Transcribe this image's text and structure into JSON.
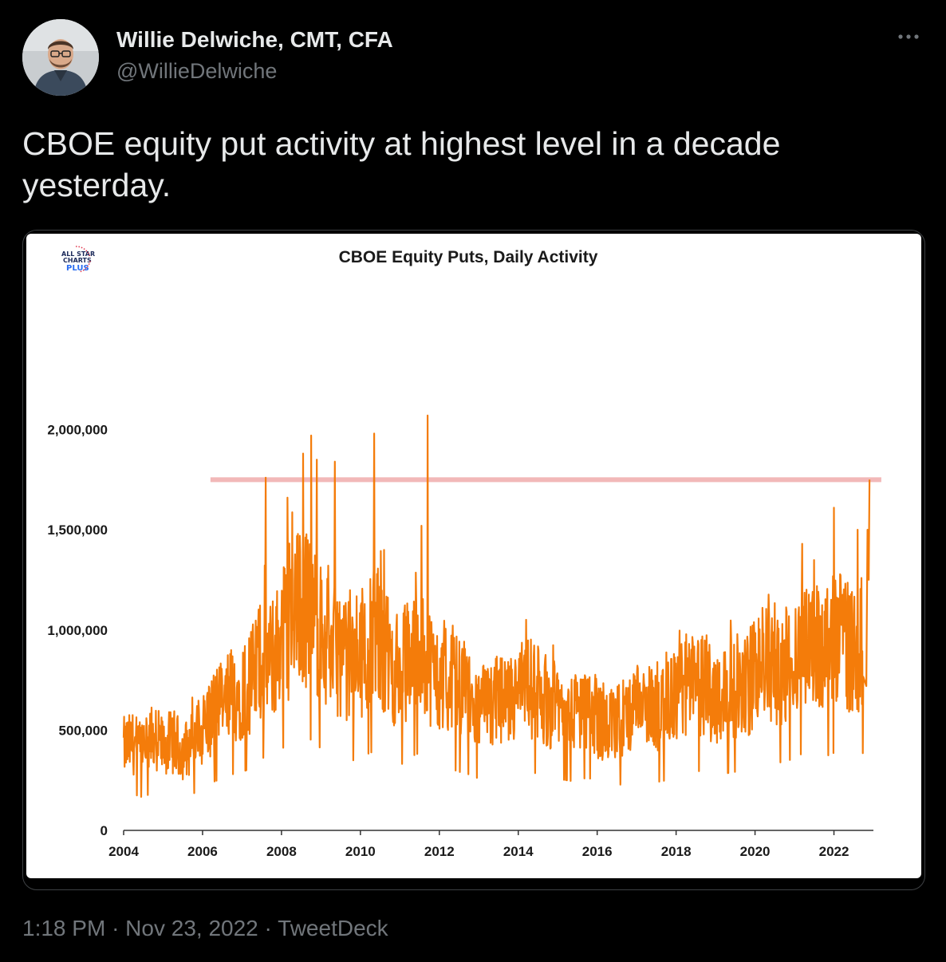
{
  "author": {
    "name": "Willie Delwiche, CMT, CFA",
    "handle": "@WillieDelwiche"
  },
  "more_icon": "more-horizontal-icon",
  "tweet": {
    "text": "CBOE equity put activity at highest level in a decade yesterday."
  },
  "meta": {
    "time": "1:18 PM",
    "separator": "·",
    "date": "Nov 23, 2022",
    "source": "TweetDeck"
  },
  "colors": {
    "series": "#f47c0a",
    "reference_line": "#f2b8b8",
    "background": "#000000",
    "chart_background": "#ffffff"
  },
  "logo": {
    "line1": "ALL STAR",
    "line2": "CHARTS",
    "line3": "PLUS"
  },
  "chart_data": {
    "type": "line",
    "title": "CBOE Equity Puts, Daily Activity",
    "xlabel": "",
    "ylabel": "",
    "xlim": [
      2004,
      2023
    ],
    "ylim": [
      0,
      2400000
    ],
    "x_ticks": [
      2004,
      2006,
      2008,
      2010,
      2012,
      2014,
      2016,
      2018,
      2020,
      2022
    ],
    "x_tick_labels": [
      "2004",
      "2006",
      "2008",
      "2010",
      "2012",
      "2014",
      "2016",
      "2018",
      "2020",
      "2022"
    ],
    "y_ticks": [
      0,
      500000,
      1000000,
      1500000,
      2000000
    ],
    "y_tick_labels": [
      "0",
      "500,000",
      "1,000,000",
      "1,500,000",
      "2,000,000"
    ],
    "grid": false,
    "legend": "none",
    "reference_line": {
      "y": 1750000,
      "x_start": 2006.2,
      "x_end": 2023.2
    },
    "series": [
      {
        "x": [
          2004.0,
          2004.25,
          2004.5,
          2004.75,
          2005.0,
          2005.25,
          2005.5,
          2005.75,
          2006.0,
          2006.25,
          2006.5,
          2006.75,
          2007.0,
          2007.25,
          2007.5,
          2007.75,
          2008.0,
          2008.25,
          2008.5,
          2008.75,
          2009.0,
          2009.25,
          2009.5,
          2009.75,
          2010.0,
          2010.25,
          2010.5,
          2010.75,
          2011.0,
          2011.25,
          2011.5,
          2011.75,
          2012.0,
          2012.25,
          2012.5,
          2012.75,
          2013.0,
          2013.25,
          2013.5,
          2013.75,
          2014.0,
          2014.25,
          2014.5,
          2014.75,
          2015.0,
          2015.25,
          2015.5,
          2015.75,
          2016.0,
          2016.25,
          2016.5,
          2016.75,
          2017.0,
          2017.25,
          2017.5,
          2017.75,
          2018.0,
          2018.25,
          2018.5,
          2018.75,
          2019.0,
          2019.25,
          2019.5,
          2019.75,
          2020.0,
          2020.25,
          2020.5,
          2020.75,
          2021.0,
          2021.25,
          2021.5,
          2021.75,
          2022.0,
          2022.25,
          2022.5,
          2022.75,
          2022.9
        ],
        "y": [
          400000,
          420000,
          380000,
          450000,
          400000,
          430000,
          380000,
          420000,
          500000,
          560000,
          600000,
          650000,
          680000,
          720000,
          850000,
          800000,
          950000,
          1000000,
          1100000,
          1050000,
          950000,
          900000,
          850000,
          800000,
          850000,
          900000,
          950000,
          800000,
          750000,
          850000,
          900000,
          800000,
          700000,
          720000,
          680000,
          650000,
          600000,
          580000,
          620000,
          600000,
          650000,
          700000,
          650000,
          620000,
          600000,
          580000,
          560000,
          620000,
          550000,
          500000,
          520000,
          550000,
          580000,
          600000,
          560000,
          580000,
          650000,
          700000,
          680000,
          700000,
          650000,
          660000,
          680000,
          700000,
          750000,
          850000,
          800000,
          780000,
          850000,
          900000,
          880000,
          850000,
          900000,
          950000,
          850000,
          900000,
          1750000
        ]
      }
    ]
  }
}
